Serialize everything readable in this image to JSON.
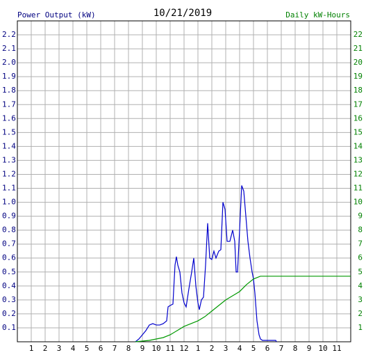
{
  "chart_data": {
    "type": "line",
    "title": "10/21/2019",
    "y_label": "Power Output (kW)",
    "y2_label": "Daily kW-Hours",
    "xlim": [
      0,
      24
    ],
    "xticks": [
      1,
      2,
      3,
      4,
      5,
      6,
      7,
      8,
      9,
      10,
      11,
      12,
      {
        "value": 13,
        "label": "1"
      },
      {
        "value": 14,
        "label": "2"
      },
      {
        "value": 15,
        "label": "3"
      },
      {
        "value": 16,
        "label": "4"
      },
      {
        "value": 17,
        "label": "5"
      },
      {
        "value": 18,
        "label": "6"
      },
      {
        "value": 19,
        "label": "7"
      },
      {
        "value": 20,
        "label": "8"
      },
      {
        "value": 21,
        "label": "9"
      },
      {
        "value": 22,
        "label": "10"
      },
      {
        "value": 23,
        "label": "11"
      }
    ],
    "ylim": [
      0,
      2.3
    ],
    "yticks": [
      0.1,
      0.2,
      0.3,
      0.4,
      0.5,
      0.6,
      0.7,
      0.8,
      0.9,
      {
        "value": 1,
        "label": "1.0"
      },
      1.1,
      1.2,
      1.3,
      1.4,
      1.5,
      1.6,
      1.7,
      1.8,
      1.9,
      {
        "value": 2,
        "label": "2.0"
      },
      2.1,
      2.2
    ],
    "y2lim": [
      0,
      23
    ],
    "y2ticks": [
      1,
      2,
      3,
      4,
      5,
      6,
      7,
      8,
      9,
      10,
      11,
      12,
      13,
      14,
      15,
      16,
      17,
      18,
      19,
      20,
      21,
      22
    ],
    "grid": true,
    "y_label_color": "#000080",
    "y2_label_color": "#008000",
    "series": [
      {
        "color": "#0000cc",
        "x": [
          8.5,
          8.75,
          9.0,
          9.25,
          9.5,
          9.75,
          10.0,
          10.25,
          10.5,
          10.75,
          10.85,
          11.0,
          11.2,
          11.35,
          11.45,
          11.55,
          11.7,
          11.85,
          12.0,
          12.15,
          12.35,
          12.55,
          12.7,
          12.85,
          13.0,
          13.1,
          13.25,
          13.4,
          13.55,
          13.7,
          13.85,
          14.0,
          14.15,
          14.3,
          14.5,
          14.65,
          14.8,
          14.95,
          15.1,
          15.3,
          15.5,
          15.65,
          15.75,
          15.85,
          16.0,
          16.15,
          16.3,
          16.45,
          16.6,
          16.75,
          16.9,
          17.0,
          17.1,
          17.25,
          17.4,
          17.5,
          17.65,
          18.6,
          18.65
        ],
        "values": [
          0,
          0.02,
          0.05,
          0.08,
          0.12,
          0.13,
          0.12,
          0.12,
          0.13,
          0.15,
          0.25,
          0.26,
          0.27,
          0.55,
          0.61,
          0.55,
          0.5,
          0.35,
          0.28,
          0.25,
          0.38,
          0.5,
          0.6,
          0.4,
          0.28,
          0.23,
          0.3,
          0.32,
          0.55,
          0.85,
          0.6,
          0.59,
          0.65,
          0.6,
          0.65,
          0.66,
          1.0,
          0.95,
          0.72,
          0.72,
          0.8,
          0.72,
          0.5,
          0.5,
          0.8,
          1.12,
          1.08,
          0.9,
          0.72,
          0.6,
          0.5,
          0.45,
          0.35,
          0.15,
          0.05,
          0.02,
          0.01,
          0.01,
          0
        ]
      },
      {
        "color": "#009900",
        "axis": "y2",
        "x": [
          8.5,
          9.5,
          10.5,
          11.0,
          11.5,
          12.0,
          12.5,
          13.0,
          13.5,
          14.0,
          14.5,
          15.0,
          15.5,
          16.0,
          16.5,
          17.0,
          17.5,
          24.0
        ],
        "values": [
          0,
          0.1,
          0.3,
          0.5,
          0.8,
          1.1,
          1.3,
          1.5,
          1.8,
          2.2,
          2.6,
          3.0,
          3.3,
          3.6,
          4.1,
          4.5,
          4.7,
          4.7
        ]
      }
    ]
  }
}
